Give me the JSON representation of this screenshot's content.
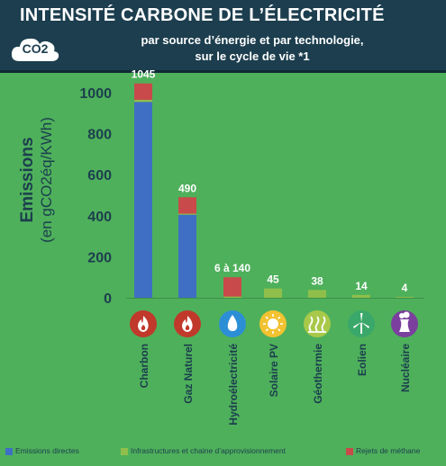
{
  "header": {
    "title": "INTENSITÉ CARBONE DE L’ÉLECTRICITÉ",
    "subtitle_line1": "par source d’énergie et par technologie,",
    "subtitle_line2": "sur le cycle de vie *1",
    "badge": "CO2"
  },
  "chart_data": {
    "type": "bar",
    "stacked": true,
    "ylabel_line1": "Emissions",
    "ylabel_line2": "(en gCO2éq/KWh)",
    "ylim": [
      0,
      1000
    ],
    "yticks": [
      0,
      200,
      400,
      600,
      800,
      1000
    ],
    "categories": [
      "Charbon",
      "Gaz Naturel",
      "Hydroélectricité",
      "Solaire PV",
      "Géothermie",
      "Eolien",
      "Nucléaire"
    ],
    "value_labels": [
      "1045",
      "490",
      "6 à 140",
      "45",
      "38",
      "14",
      "4"
    ],
    "icons": [
      "flame-icon",
      "flame-icon",
      "water-drop-icon",
      "sun-icon",
      "geothermal-icon",
      "wind-turbine-icon",
      "cooling-tower-icon"
    ],
    "icon_colors": [
      "#c0392b",
      "#c0392b",
      "#2c8fd6",
      "#f2c230",
      "#a8c84a",
      "#3aa86a",
      "#7b3f9e"
    ],
    "series": [
      {
        "name": "Emissions directes",
        "color": "#3f6fc4",
        "values": [
          955,
          405,
          0,
          0,
          0,
          0,
          0
        ]
      },
      {
        "name": "Infrastructures et chaine d’approvisionnement",
        "color": "#8fbf4a",
        "values": [
          10,
          5,
          6,
          45,
          38,
          14,
          4
        ]
      },
      {
        "name": "Rejets de méthane",
        "color": "#c94a4a",
        "values": [
          80,
          80,
          94,
          0,
          0,
          0,
          0
        ]
      }
    ],
    "legend_position": "bottom",
    "grid": false
  }
}
